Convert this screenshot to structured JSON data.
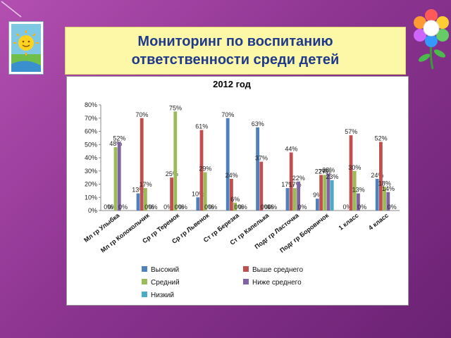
{
  "slide": {
    "title_line1": "Мониторинг по воспитанию",
    "title_line2": "ответственности среди детей"
  },
  "colors": {
    "background": "#8d3591",
    "title_box": "#fdf8a8",
    "title_text": "#1f3a8a"
  },
  "icons": {
    "emblem": "sun-emblem-icon",
    "flower": "flower-logo-icon"
  },
  "chart_data": {
    "type": "bar",
    "title": "2012 год",
    "xlabel": "",
    "ylabel": "",
    "ylim": [
      0,
      80
    ],
    "yticks": [
      "0%",
      "10%",
      "20%",
      "30%",
      "40%",
      "50%",
      "60%",
      "70%",
      "80%"
    ],
    "grid": false,
    "legend_position": "bottom",
    "categories": [
      "Мл гр Улыбка",
      "Мл гр Колокольчик",
      "Ср гр Теремок",
      "Ср гр Львенок",
      "Ст гр Березка",
      "Ст гр Капелька",
      "Подг гр Ласточка",
      "Подг гр Боровичок",
      "1 класс",
      "4 класс"
    ],
    "series": [
      {
        "name": "Высокий",
        "color": "#4f81bd",
        "values": [
          0,
          13,
          0,
          10,
          70,
          63,
          17,
          9,
          0,
          24
        ]
      },
      {
        "name": "Выше среднего",
        "color": "#c0504d",
        "values": [
          0,
          70,
          25,
          61,
          24,
          37,
          44,
          27,
          57,
          52
        ]
      },
      {
        "name": "Средний",
        "color": "#9bbb59",
        "values": [
          48,
          17,
          75,
          29,
          6,
          0,
          17,
          27,
          30,
          18
        ]
      },
      {
        "name": "Ниже среднего",
        "color": "#8064a2",
        "values": [
          52,
          0,
          0,
          0,
          0,
          0,
          22,
          28,
          13,
          14
        ]
      },
      {
        "name": "Низкий",
        "color": "#4bacc6",
        "values": [
          0,
          0,
          0,
          0,
          0,
          0,
          0,
          23,
          0,
          0
        ]
      }
    ]
  }
}
